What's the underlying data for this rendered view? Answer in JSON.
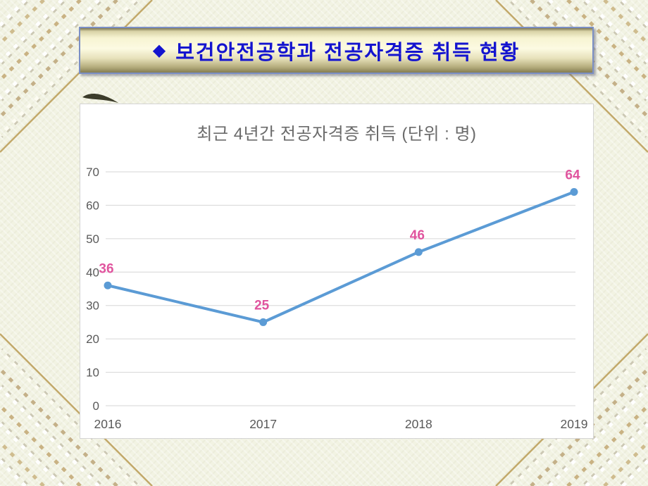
{
  "banner": {
    "bullet_icon": "◆",
    "title": "보건안전공학과 전공자격증 취득 현황"
  },
  "chart_data": {
    "type": "line",
    "title": "최근 4년간 전공자격증 취득 (단위 : 명)",
    "categories": [
      "2016",
      "2017",
      "2018",
      "2019"
    ],
    "values": [
      36,
      25,
      46,
      64
    ],
    "data_labels": [
      "36",
      "25",
      "46",
      "64"
    ],
    "ylim": [
      0,
      70
    ],
    "y_ticks": [
      0,
      10,
      20,
      30,
      40,
      50,
      60,
      70
    ],
    "grid": true,
    "legend": "none",
    "colors": {
      "line": "#5B9BD5",
      "marker": "#5B9BD5",
      "data_label": "#E0549E",
      "grid": "#D6D6D6",
      "axis_text": "#595959",
      "title_text": "#6B6B6B"
    }
  }
}
